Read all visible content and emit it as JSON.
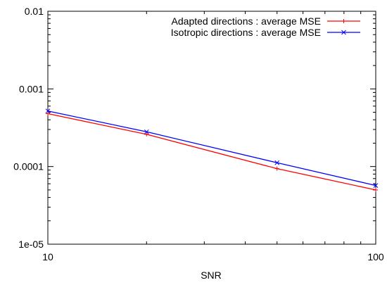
{
  "chart_data": {
    "type": "line",
    "title": "",
    "xlabel": "SNR",
    "ylabel": "",
    "x_scale": "log",
    "y_scale": "log",
    "xlim": [
      10,
      100
    ],
    "ylim": [
      1e-05,
      0.01
    ],
    "x_ticks": [
      10,
      100
    ],
    "x_tick_labels": [
      "10",
      "100"
    ],
    "y_ticks": [
      0.01,
      0.001,
      0.0001,
      1e-05
    ],
    "y_tick_labels": [
      "0.01",
      "0.001",
      "0.0001",
      "1e-05"
    ],
    "grid": false,
    "legend_position": "top-right",
    "x": [
      10,
      20,
      50,
      100
    ],
    "series": [
      {
        "name": "Adapted directions : average MSE",
        "color": "#ff0000",
        "marker": "plus",
        "values": [
          0.00048,
          0.00026,
          9.4e-05,
          5e-05
        ]
      },
      {
        "name": "Isotropic directions : average MSE",
        "color": "#0000ff",
        "marker": "x",
        "values": [
          0.00052,
          0.00028,
          0.000112,
          5.7e-05
        ]
      }
    ]
  }
}
